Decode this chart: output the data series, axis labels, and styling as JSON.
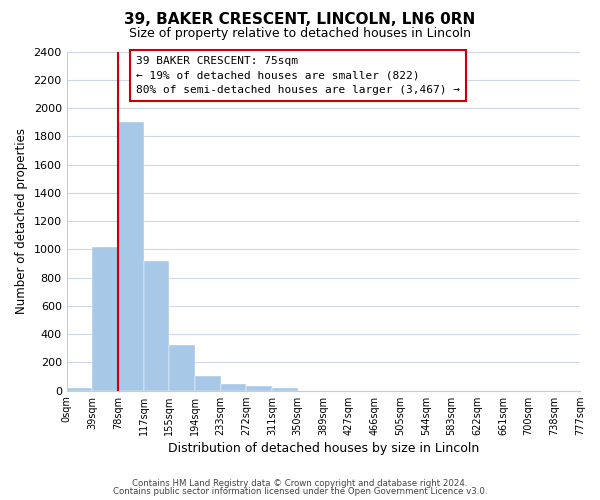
{
  "title": "39, BAKER CRESCENT, LINCOLN, LN6 0RN",
  "subtitle": "Size of property relative to detached houses in Lincoln",
  "xlabel": "Distribution of detached houses by size in Lincoln",
  "ylabel": "Number of detached properties",
  "bin_edges": [
    0,
    39,
    78,
    117,
    155,
    194,
    233,
    272,
    311,
    350,
    389,
    427,
    466,
    505,
    544,
    583,
    622,
    661,
    700,
    738,
    777
  ],
  "bin_edge_labels": [
    "0sqm",
    "39sqm",
    "78sqm",
    "117sqm",
    "155sqm",
    "194sqm",
    "233sqm",
    "272sqm",
    "311sqm",
    "350sqm",
    "389sqm",
    "427sqm",
    "466sqm",
    "505sqm",
    "544sqm",
    "583sqm",
    "622sqm",
    "661sqm",
    "700sqm",
    "738sqm",
    "777sqm"
  ],
  "bar_heights": [
    20,
    1020,
    1900,
    920,
    320,
    105,
    50,
    30,
    20,
    0,
    0,
    0,
    0,
    0,
    0,
    0,
    0,
    0,
    0,
    0
  ],
  "bar_color": "#a8c8e8",
  "property_line_bin": 1,
  "annotation_title": "39 BAKER CRESCENT: 75sqm",
  "annotation_line1": "← 19% of detached houses are smaller (822)",
  "annotation_line2": "80% of semi-detached houses are larger (3,467) →",
  "annotation_box_color": "#ffffff",
  "annotation_box_edge": "#cc0000",
  "property_line_color": "#cc0000",
  "ylim": [
    0,
    2400
  ],
  "yticks": [
    0,
    200,
    400,
    600,
    800,
    1000,
    1200,
    1400,
    1600,
    1800,
    2000,
    2200,
    2400
  ],
  "footer_line1": "Contains HM Land Registry data © Crown copyright and database right 2024.",
  "footer_line2": "Contains public sector information licensed under the Open Government Licence v3.0.",
  "background_color": "#ffffff",
  "grid_color": "#d0d8e8"
}
